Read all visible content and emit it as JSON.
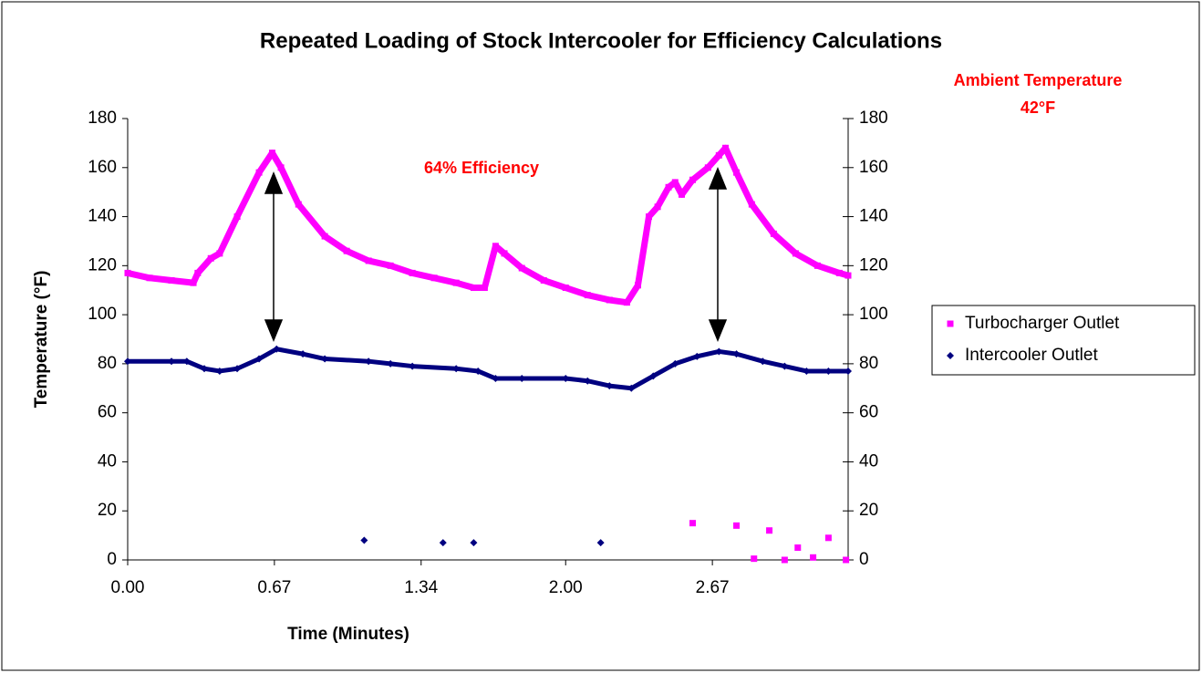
{
  "chart_data": {
    "type": "scatter",
    "title": "Repeated Loading of Stock Intercooler for Efficiency Calculations",
    "xlabel": "Time (Minutes)",
    "ylabel": "Temperature (°F)",
    "annotations": [
      "64% Efficiency",
      "Ambient Temperature",
      "42°F"
    ],
    "xlim": [
      0,
      3.29
    ],
    "xticks": [
      {
        "value": 0,
        "label": "0.00"
      },
      0.67,
      1.34,
      {
        "value": 2,
        "label": "2.00"
      },
      2.67
    ],
    "ylim": [
      0,
      180
    ],
    "yticks": [
      0,
      20,
      40,
      60,
      80,
      100,
      120,
      140,
      160,
      180
    ],
    "y2lim": [
      0,
      180
    ],
    "y2ticks": [
      0,
      20,
      40,
      60,
      80,
      100,
      120,
      140,
      160,
      180
    ],
    "legend": "right",
    "series": [
      {
        "name": "Turbocharger Outlet",
        "color": "#ff00ff",
        "marker": "square",
        "x": [
          0,
          0.1,
          0.2,
          0.3,
          0.32,
          0.38,
          0.42,
          0.5,
          0.6,
          0.66,
          0.7,
          0.78,
          0.9,
          1.0,
          1.1,
          1.2,
          1.3,
          1.4,
          1.5,
          1.58,
          1.63,
          1.68,
          1.72,
          1.8,
          1.9,
          2.0,
          2.1,
          2.2,
          2.28,
          2.33,
          2.38,
          2.42,
          2.47,
          2.5,
          2.53,
          2.58,
          2.65,
          2.7,
          2.73,
          2.78,
          2.85,
          2.95,
          3.05,
          3.15,
          3.25,
          3.29,
          null,
          2.58,
          null,
          2.78,
          null,
          2.86,
          null,
          2.93,
          null,
          3.0,
          null,
          3.06,
          null,
          3.13,
          null,
          3.2,
          null,
          3.28
        ],
        "values": [
          117,
          115,
          114,
          113,
          117,
          123,
          125,
          140,
          158,
          166,
          160,
          145,
          132,
          126,
          122,
          120,
          117,
          115,
          113,
          111,
          111,
          128,
          125,
          119,
          114,
          111,
          108,
          106,
          105,
          112,
          140,
          144,
          152,
          154,
          149,
          155,
          160,
          165,
          168,
          158,
          145,
          133,
          125,
          120,
          117,
          116,
          null,
          15,
          null,
          14,
          null,
          0.5,
          null,
          12,
          null,
          0,
          null,
          5,
          null,
          1,
          null,
          9,
          null,
          0
        ]
      },
      {
        "name": "Intercooler Outlet",
        "color": "#000080",
        "marker": "diamond",
        "x": [
          0,
          0.2,
          0.27,
          0.35,
          0.42,
          0.5,
          0.6,
          0.68,
          0.8,
          0.9,
          1.1,
          1.2,
          1.3,
          1.5,
          1.6,
          1.68,
          1.8,
          2.0,
          2.1,
          2.2,
          2.3,
          2.4,
          2.5,
          2.6,
          2.7,
          2.78,
          2.9,
          3.0,
          3.1,
          3.2,
          3.29,
          null,
          1.08,
          null,
          1.44,
          null,
          1.58,
          null,
          2.16
        ],
        "values": [
          81,
          81,
          81,
          78,
          77,
          78,
          82,
          86,
          84,
          82,
          81,
          80,
          79,
          78,
          77,
          74,
          74,
          74,
          73,
          71,
          70,
          75,
          80,
          83,
          85,
          84,
          81,
          79,
          77,
          77,
          77,
          null,
          8,
          null,
          7,
          null,
          7,
          null,
          7
        ]
      }
    ]
  }
}
